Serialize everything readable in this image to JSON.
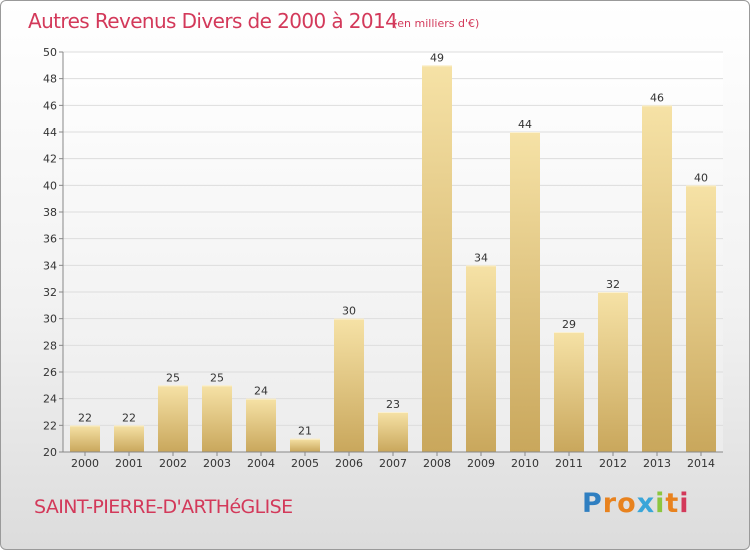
{
  "header": {
    "title": "Autres Revenus Divers de 2000 à 2014",
    "unit_note": "(en milliers d'€)"
  },
  "footer": {
    "commune": "SAINT-PIERRE-D'ARTHéGLISE",
    "logo_text": "Proxiti",
    "logo_colors": [
      "#2f7fc1",
      "#e8821e",
      "#e8821e",
      "#3aa6d9",
      "#8cc63f",
      "#e8821e",
      "#d3395a"
    ]
  },
  "colors": {
    "title": "#d3395a",
    "bar_light": "#f6e2a6",
    "bar_dark": "#c9a75c",
    "grid": "#dddddd",
    "axis": "#888888",
    "label": "#333333"
  },
  "chart_data": {
    "type": "bar",
    "categories": [
      "2000",
      "2001",
      "2002",
      "2003",
      "2004",
      "2005",
      "2006",
      "2007",
      "2008",
      "2009",
      "2010",
      "2011",
      "2012",
      "2013",
      "2014"
    ],
    "values": [
      22,
      22,
      25,
      25,
      24,
      21,
      30,
      23,
      49,
      34,
      44,
      29,
      32,
      46,
      40
    ],
    "title": "Autres Revenus Divers de 2000 à 2014",
    "subtitle": "(en milliers d'€)",
    "ylim": [
      20,
      50
    ],
    "ytick_step": 2,
    "grid": true,
    "data_labels": true
  }
}
